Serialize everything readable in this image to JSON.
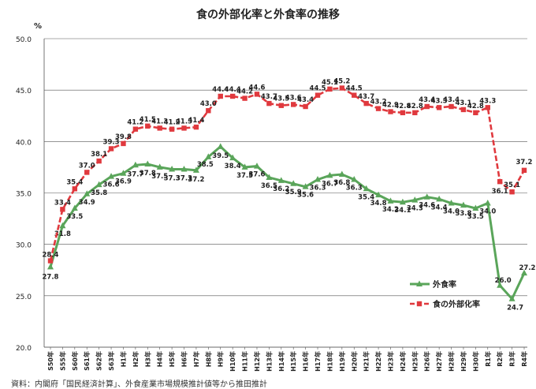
{
  "chart_data": {
    "type": "line",
    "title": "食の外部化率と外食率の推移",
    "ylabel": "%",
    "xlabel": "",
    "ylim": [
      20.0,
      50.0
    ],
    "yticks": [
      "20.0",
      "25.0",
      "30.0",
      "35.0",
      "40.0",
      "45.0",
      "50.0"
    ],
    "grid": true,
    "legend_position": "bottom-right",
    "categories": [
      "S50年",
      "S55年",
      "S60年",
      "S61年",
      "S62年",
      "S63年",
      "H1年",
      "H2年",
      "H3年",
      "H4年",
      "H5年",
      "H6年",
      "H7年",
      "H8年",
      "H9年",
      "H10年",
      "H11年",
      "H12年",
      "H13年",
      "H14年",
      "H15年",
      "H16年",
      "H17年",
      "H18年",
      "H19年",
      "H20年",
      "H21年",
      "H22年",
      "H23年",
      "H24年",
      "H25年",
      "H26年",
      "H27年",
      "H28年",
      "H29年",
      "H30年",
      "R1年",
      "R2年",
      "R3年",
      "R4年"
    ],
    "series": [
      {
        "name": "外食率",
        "color": "#5aa55a",
        "values": [
          27.8,
          31.8,
          33.5,
          34.9,
          35.8,
          36.6,
          36.9,
          37.7,
          37.8,
          37.5,
          37.3,
          37.3,
          37.2,
          38.5,
          39.5,
          38.4,
          37.5,
          37.6,
          36.5,
          36.2,
          35.9,
          35.6,
          36.3,
          36.7,
          36.8,
          36.3,
          35.4,
          34.8,
          34.2,
          34.1,
          34.3,
          34.6,
          34.4,
          34.0,
          33.8,
          33.5,
          34.0,
          26.0,
          24.7,
          27.2
        ],
        "labels": [
          "27.8",
          "31.8",
          "33.5",
          "34.9",
          "35.8",
          "36.6",
          "36.9",
          "37.7",
          "37.8",
          "37.5",
          "37.3",
          "37.3",
          "37.2",
          "38.5",
          "39.5",
          "38.4",
          "37.5",
          "37.6",
          "36.5",
          "36.2",
          "35.9",
          "35.6",
          "36.3",
          "36.7",
          "36.8",
          "36.3",
          "35.4",
          "34.8",
          "34.2",
          "34.1",
          "34.3",
          "34.6",
          "34.4",
          "34.0",
          "33.8",
          "33.5",
          "34.0",
          "26.0",
          "24.7",
          "27.2"
        ]
      },
      {
        "name": "食の外部化率",
        "color": "#e0393e",
        "values": [
          28.4,
          33.4,
          35.4,
          37.0,
          38.1,
          39.3,
          39.8,
          41.2,
          41.5,
          41.3,
          41.2,
          41.3,
          41.4,
          43.0,
          44.4,
          44.4,
          44.2,
          44.6,
          43.7,
          43.5,
          43.6,
          43.4,
          44.5,
          45.1,
          45.2,
          44.5,
          43.7,
          43.2,
          42.9,
          42.8,
          42.8,
          43.4,
          43.3,
          43.4,
          43.1,
          42.8,
          43.3,
          36.1,
          35.1,
          37.2
        ],
        "labels": [
          "28.4",
          "33.4",
          "35.4",
          "37.0",
          "38.1",
          "39.3",
          "39.8",
          "41.2",
          "41.5",
          "41.3",
          "41.2",
          "41.3",
          "41.4",
          "43.0",
          "44.4",
          "44.4",
          "44.2",
          "44.6",
          "43.7",
          "43.5",
          "43.6",
          "43.4",
          "44.5",
          "45.1",
          "45.2",
          "44.5",
          "43.7",
          "43.2",
          "42.9",
          "42.8",
          "42.8",
          "43.4",
          "43.3",
          "43.4",
          "43.1",
          "42.8",
          "43.3",
          "36.1",
          "35.1",
          "37.2"
        ]
      }
    ]
  },
  "source_note": "資料：内閣府「国民経済計算」、外食産業市場規模推計値等から推田推計"
}
